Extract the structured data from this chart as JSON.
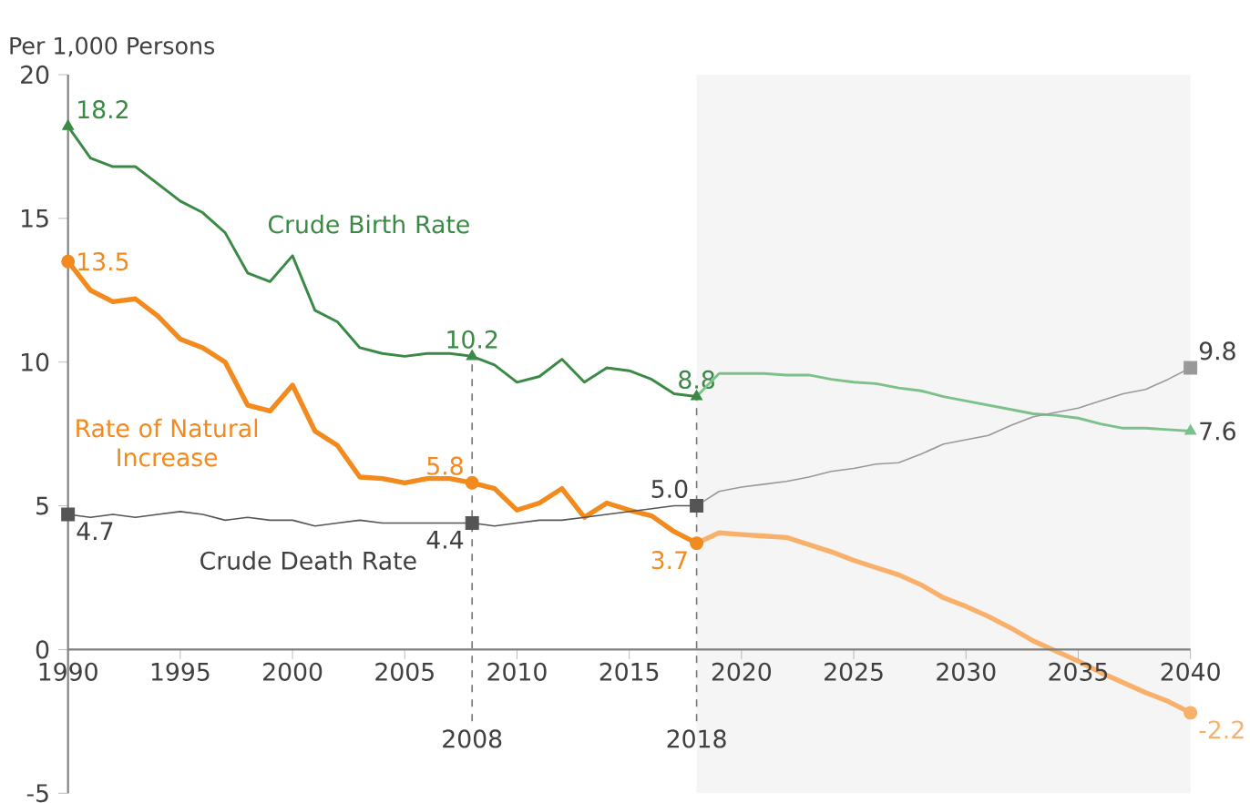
{
  "chart_data": {
    "type": "line",
    "ylabel": "Per 1,000 Persons",
    "xlim": [
      1990,
      2040
    ],
    "ylim": [
      -5,
      20
    ],
    "xticks": [
      1990,
      1995,
      2000,
      2005,
      2010,
      2015,
      2020,
      2025,
      2030,
      2035,
      2040
    ],
    "yticks": [
      -5,
      0,
      5,
      10,
      15,
      20
    ],
    "line_style": "solid",
    "series": [
      {
        "name": "Crude Birth Rate",
        "color": "#3a8a45",
        "x": [
          1990,
          1991,
          1992,
          1993,
          1994,
          1995,
          1996,
          1997,
          1998,
          1999,
          2000,
          2001,
          2002,
          2003,
          2004,
          2005,
          2006,
          2007,
          2008,
          2009,
          2010,
          2011,
          2012,
          2013,
          2014,
          2015,
          2016,
          2017,
          2018
        ],
        "values": [
          18.2,
          17.1,
          16.8,
          16.8,
          16.2,
          15.6,
          15.2,
          14.5,
          13.1,
          12.8,
          13.7,
          11.8,
          11.4,
          10.5,
          10.3,
          10.2,
          10.3,
          10.3,
          10.2,
          9.9,
          9.3,
          9.5,
          10.1,
          9.3,
          9.8,
          9.7,
          9.4,
          8.9,
          8.8
        ],
        "value_labels": [
          "18.2",
          null,
          null,
          null,
          null,
          null,
          null,
          null,
          null,
          null,
          null,
          null,
          null,
          null,
          null,
          null,
          null,
          null,
          "10.2",
          null,
          null,
          null,
          null,
          null,
          null,
          null,
          null,
          null,
          "8.8"
        ]
      },
      {
        "color": "#7cc08a",
        "x": [
          2018,
          2019,
          2020,
          2021,
          2022,
          2023,
          2024,
          2025,
          2026,
          2027,
          2028,
          2029,
          2030,
          2031,
          2032,
          2033,
          2034,
          2035,
          2036,
          2037,
          2038,
          2039,
          2040
        ],
        "values": [
          8.8,
          9.6,
          9.6,
          9.6,
          9.55,
          9.55,
          9.4,
          9.3,
          9.25,
          9.1,
          9.0,
          8.8,
          8.65,
          8.5,
          8.35,
          8.2,
          8.15,
          8.05,
          7.85,
          7.7,
          7.7,
          7.65,
          7.6
        ],
        "value_labels": [
          null,
          null,
          null,
          null,
          null,
          null,
          null,
          null,
          null,
          null,
          null,
          null,
          null,
          null,
          null,
          null,
          null,
          null,
          null,
          null,
          null,
          null,
          "7.6"
        ]
      },
      {
        "name": "Rate of Natural Increase",
        "color": "#f28a1e",
        "x": [
          1990,
          1991,
          1992,
          1993,
          1994,
          1995,
          1996,
          1997,
          1998,
          1999,
          2000,
          2001,
          2002,
          2003,
          2004,
          2005,
          2006,
          2007,
          2008,
          2009,
          2010,
          2011,
          2012,
          2013,
          2014,
          2015,
          2016,
          2017,
          2018
        ],
        "values": [
          13.5,
          12.5,
          12.1,
          12.2,
          11.6,
          10.8,
          10.5,
          10.0,
          8.5,
          8.3,
          9.2,
          7.6,
          7.1,
          6.0,
          5.95,
          5.8,
          5.95,
          5.95,
          5.8,
          5.6,
          4.85,
          5.1,
          5.6,
          4.6,
          5.1,
          4.85,
          4.65,
          4.1,
          3.7
        ],
        "value_labels": [
          "13.5",
          null,
          null,
          null,
          null,
          null,
          null,
          null,
          null,
          null,
          null,
          null,
          null,
          null,
          null,
          null,
          null,
          null,
          "5.8",
          null,
          null,
          null,
          null,
          null,
          null,
          null,
          null,
          null,
          "3.7"
        ]
      },
      {
        "color": "#f8b06a",
        "x": [
          2018,
          2019,
          2020,
          2021,
          2022,
          2023,
          2024,
          2025,
          2026,
          2027,
          2028,
          2029,
          2030,
          2031,
          2032,
          2033,
          2034,
          2035,
          2036,
          2037,
          2038,
          2039,
          2040
        ],
        "values": [
          3.7,
          4.06,
          4.0,
          3.95,
          3.9,
          3.65,
          3.4,
          3.1,
          2.85,
          2.6,
          2.25,
          1.8,
          1.5,
          1.15,
          0.75,
          0.3,
          -0.05,
          -0.4,
          -0.8,
          -1.15,
          -1.5,
          -1.8,
          -2.2
        ],
        "value_labels": [
          null,
          null,
          null,
          null,
          null,
          null,
          null,
          null,
          null,
          null,
          null,
          null,
          null,
          null,
          null,
          null,
          null,
          null,
          null,
          null,
          null,
          null,
          "-2.2"
        ]
      },
      {
        "name": "Crude Death Rate",
        "color": "#555555",
        "x": [
          1990,
          1991,
          1992,
          1993,
          1994,
          1995,
          1996,
          1997,
          1998,
          1999,
          2000,
          2001,
          2002,
          2003,
          2004,
          2005,
          2006,
          2007,
          2008,
          2009,
          2010,
          2011,
          2012,
          2013,
          2014,
          2015,
          2016,
          2017,
          2018
        ],
        "values": [
          4.7,
          4.6,
          4.7,
          4.6,
          4.7,
          4.8,
          4.7,
          4.5,
          4.6,
          4.5,
          4.5,
          4.3,
          4.4,
          4.5,
          4.4,
          4.4,
          4.4,
          4.4,
          4.4,
          4.3,
          4.4,
          4.5,
          4.5,
          4.6,
          4.7,
          4.8,
          4.9,
          5.0,
          5.0
        ],
        "value_labels": [
          "4.7",
          null,
          null,
          null,
          null,
          null,
          null,
          null,
          null,
          null,
          null,
          null,
          null,
          null,
          null,
          null,
          null,
          null,
          "4.4",
          null,
          null,
          null,
          null,
          null,
          null,
          null,
          null,
          null,
          "5.0"
        ]
      },
      {
        "color": "#999999",
        "x": [
          2018,
          2019,
          2020,
          2021,
          2022,
          2023,
          2024,
          2025,
          2026,
          2027,
          2028,
          2029,
          2030,
          2031,
          2032,
          2033,
          2034,
          2035,
          2036,
          2037,
          2038,
          2039,
          2040
        ],
        "values": [
          5.0,
          5.5,
          5.65,
          5.75,
          5.85,
          6.0,
          6.2,
          6.3,
          6.45,
          6.5,
          6.8,
          7.15,
          7.3,
          7.45,
          7.8,
          8.1,
          8.25,
          8.4,
          8.65,
          8.9,
          9.05,
          9.4,
          9.8
        ],
        "value_labels": [
          null,
          null,
          null,
          null,
          null,
          null,
          null,
          null,
          null,
          null,
          null,
          null,
          null,
          null,
          null,
          null,
          null,
          null,
          null,
          null,
          null,
          null,
          "9.8"
        ]
      }
    ],
    "ref_lines": [
      {
        "axis": "x",
        "value": 2008,
        "label": "2008",
        "line_style": "dashed",
        "color": "#777777"
      },
      {
        "axis": "x",
        "value": 2018,
        "label": "2018",
        "line_style": "dashed",
        "color": "#777777"
      }
    ],
    "bands": [
      {
        "axis": "x",
        "from": 2018,
        "to": 2040,
        "color": "#f5f5f5"
      }
    ]
  }
}
